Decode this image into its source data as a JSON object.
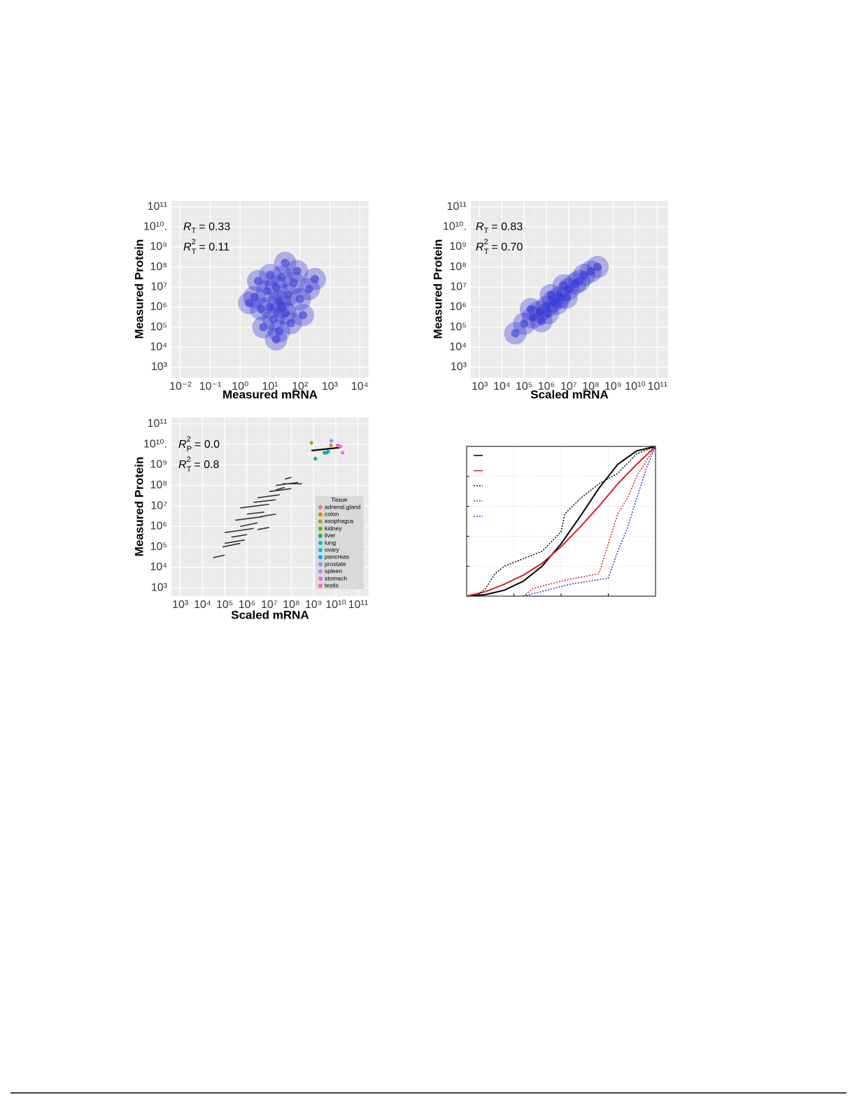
{
  "chart_data": [
    {
      "type": "scatter",
      "x_label": "Measured mRNA",
      "y_label": "Measured Protein",
      "xscale": "log",
      "yscale": "log",
      "xlim": [
        0.005,
        20000
      ],
      "ylim": [
        300,
        200000000000
      ],
      "xticks": [
        {
          "value": 0.01,
          "label": "10⁻²"
        },
        {
          "value": 0.1,
          "label": "10⁻¹"
        },
        {
          "value": 1,
          "label": "10⁰"
        },
        {
          "value": 10,
          "label": "10¹"
        },
        {
          "value": 100,
          "label": "10²"
        },
        {
          "value": 1000,
          "label": "10³"
        },
        {
          "value": 10000,
          "label": "10⁴"
        }
      ],
      "yticks": [
        {
          "value": 1000,
          "label": "10³"
        },
        {
          "value": 10000,
          "label": "10⁴"
        },
        {
          "value": 100000,
          "label": "10⁵"
        },
        {
          "value": 1000000,
          "label": "10⁶"
        },
        {
          "value": 10000000,
          "label": "10⁷"
        },
        {
          "value": 100000000,
          "label": "10⁸"
        },
        {
          "value": 1000000000,
          "label": "10⁹"
        },
        {
          "value": 10000000000,
          "label": "10¹⁰."
        },
        {
          "value": 100000000000,
          "label": "10¹¹"
        }
      ],
      "annotations": [
        {
          "symbol": "R",
          "sub": "T",
          "text": "= 0.33"
        },
        {
          "symbol": "R",
          "sub": "T",
          "sup": "2",
          "text": "= 0.11"
        }
      ],
      "color": "#3a3ad6",
      "x": [
        20,
        10,
        40,
        16,
        32,
        8,
        63,
        13,
        25,
        5,
        100,
        50,
        20,
        3,
        80,
        10,
        200,
        6,
        32,
        2,
        316,
        16,
        126,
        4,
        25
      ],
      "y": [
        2000000,
        1000000,
        4000000,
        10000000,
        500000,
        6300000,
        16000000,
        250000,
        32000000,
        800000,
        2500000,
        160000,
        63000,
        3200000,
        63000000,
        40000000,
        8000000,
        100000,
        160000000,
        1600000,
        25000000,
        25000,
        400000,
        20000000,
        1000000
      ]
    },
    {
      "type": "scatter",
      "x_label": "Scaled mRNA",
      "y_label": "Measured Protein",
      "xscale": "log",
      "yscale": "log",
      "xlim": [
        400,
        300000000000
      ],
      "ylim": [
        300,
        200000000000
      ],
      "xticks": [
        {
          "value": 1000,
          "label": "10³"
        },
        {
          "value": 10000,
          "label": "10⁴"
        },
        {
          "value": 100000,
          "label": "10⁵"
        },
        {
          "value": 1000000,
          "label": "10⁶"
        },
        {
          "value": 10000000,
          "label": "10⁷"
        },
        {
          "value": 100000000,
          "label": "10⁸"
        },
        {
          "value": 1000000000,
          "label": "10⁹"
        },
        {
          "value": 10000000000,
          "label": "10¹⁰"
        },
        {
          "value": 100000000000,
          "label": "10¹¹"
        }
      ],
      "yticks": [
        {
          "value": 1000,
          "label": "10³"
        },
        {
          "value": 10000,
          "label": "10⁴"
        },
        {
          "value": 100000,
          "label": "10⁵"
        },
        {
          "value": 1000000,
          "label": "10⁶"
        },
        {
          "value": 10000000,
          "label": "10⁷"
        },
        {
          "value": 100000000,
          "label": "10⁸"
        },
        {
          "value": 1000000000,
          "label": "10⁹"
        },
        {
          "value": 10000000000,
          "label": "10¹⁰."
        },
        {
          "value": 100000000000,
          "label": "10¹¹"
        }
      ],
      "annotations": [
        {
          "symbol": "R",
          "sub": "T",
          "text": "= 0.83"
        },
        {
          "symbol": "R",
          "sub": "T",
          "sup": "2",
          "text": "= 0.70"
        }
      ],
      "color": "#3a3ad6",
      "x": [
        2000000,
        1000000,
        4000000,
        10000000,
        500000,
        3000000,
        20000000,
        250000,
        50000000,
        100000,
        8000000,
        1600000,
        600000,
        30000000,
        100000000,
        40000,
        200000,
        6000000,
        200000000,
        1200000
      ],
      "y": [
        2000000,
        1000000,
        3000000,
        8000000,
        600000,
        1500000,
        15000000,
        300000,
        40000000,
        150000,
        3000000,
        4000000,
        200000,
        20000000,
        60000000,
        50000,
        800000,
        12000000,
        100000000,
        500000
      ]
    },
    {
      "type": "segment",
      "x_label": "Scaled mRNA",
      "y_label": "Measured Protein",
      "xscale": "log",
      "yscale": "log",
      "xlim": [
        400,
        300000000000
      ],
      "ylim": [
        400,
        200000000000
      ],
      "xticks": [
        {
          "value": 1000,
          "label": "10³"
        },
        {
          "value": 10000,
          "label": "10⁴"
        },
        {
          "value": 100000,
          "label": "10⁵"
        },
        {
          "value": 1000000,
          "label": "10⁶"
        },
        {
          "value": 10000000,
          "label": "10⁷"
        },
        {
          "value": 100000000,
          "label": "10⁸"
        },
        {
          "value": 1000000000,
          "label": "10⁹"
        },
        {
          "value": 10000000000,
          "label": "10¹⁰"
        },
        {
          "value": 100000000000,
          "label": "10¹¹"
        }
      ],
      "yticks": [
        {
          "value": 1000,
          "label": "10³"
        },
        {
          "value": 10000,
          "label": "10⁴"
        },
        {
          "value": 100000,
          "label": "10⁵"
        },
        {
          "value": 1000000,
          "label": "10⁶"
        },
        {
          "value": 10000000,
          "label": "10⁷"
        },
        {
          "value": 100000000,
          "label": "10⁸"
        },
        {
          "value": 1000000000,
          "label": "10⁹"
        },
        {
          "value": 10000000000,
          "label": "10¹⁰."
        },
        {
          "value": 100000000000,
          "label": "10¹¹"
        }
      ],
      "annotations": [
        {
          "symbol": "R",
          "sub": "P",
          "sup": "2",
          "text": "= 0.0"
        },
        {
          "symbol": "R",
          "sub": "T",
          "sup": "2",
          "text": "= 0.8"
        }
      ],
      "color": "#333333",
      "segments": [
        {
          "x": [
            30000,
            100000
          ],
          "y": [
            30000,
            40000
          ]
        },
        {
          "x": [
            80000,
            500000
          ],
          "y": [
            100000,
            150000
          ]
        },
        {
          "x": [
            200000,
            1000000
          ],
          "y": [
            300000,
            400000
          ]
        },
        {
          "x": [
            100000,
            2000000
          ],
          "y": [
            500000,
            800000
          ]
        },
        {
          "x": [
            500000,
            3000000
          ],
          "y": [
            1000000,
            1500000
          ]
        },
        {
          "x": [
            300000,
            5000000
          ],
          "y": [
            2000000,
            3000000
          ]
        },
        {
          "x": [
            1000000,
            6000000
          ],
          "y": [
            4000000,
            5000000
          ]
        },
        {
          "x": [
            500000,
            10000000
          ],
          "y": [
            8000000,
            12000000
          ]
        },
        {
          "x": [
            2000000,
            20000000
          ],
          "y": [
            15000000,
            20000000
          ]
        },
        {
          "x": [
            3000000,
            30000000
          ],
          "y": [
            25000000,
            35000000
          ]
        },
        {
          "x": [
            10000000,
            100000000
          ],
          "y": [
            50000000,
            70000000
          ]
        },
        {
          "x": [
            20000000,
            200000000
          ],
          "y": [
            100000000,
            140000000
          ]
        },
        {
          "x": [
            50000000,
            100000000
          ],
          "y": [
            200000000,
            250000000
          ]
        },
        {
          "x": [
            4000000,
            20000000
          ],
          "y": [
            3000000,
            4000000
          ]
        },
        {
          "x": [
            3000000,
            10000000
          ],
          "y": [
            700000,
            900000
          ]
        },
        {
          "x": [
            100000,
            800000
          ],
          "y": [
            150000,
            220000
          ]
        },
        {
          "x": [
            40000000,
            300000000
          ],
          "y": [
            120000000,
            120000000
          ]
        },
        {
          "x": [
            20000000,
            50000000
          ],
          "y": [
            60000000,
            80000000
          ]
        }
      ],
      "fit": {
        "x": [
          800000000,
          15000000000
        ],
        "y": [
          5000000000,
          7000000000
        ]
      },
      "legend_title": "Tissue",
      "series": [
        {
          "name": "adrenal.gland",
          "color": "#f8766d",
          "x": [
            12000000000
          ],
          "y": [
            9000000000
          ]
        },
        {
          "name": "colon",
          "color": "#db8e00",
          "x": [
            6000000000
          ],
          "y": [
            9000000000
          ]
        },
        {
          "name": "esophagus",
          "color": "#aea200",
          "x": [
            800000000
          ],
          "y": [
            12000000000
          ]
        },
        {
          "name": "kidney",
          "color": "#64b200",
          "x": [
            3000000000
          ],
          "y": [
            4000000000
          ]
        },
        {
          "name": "liver",
          "color": "#00bd5c",
          "x": [
            1200000000
          ],
          "y": [
            2000000000
          ]
        },
        {
          "name": "lung",
          "color": "#00c1a7",
          "x": [
            4500000000
          ],
          "y": [
            4500000000
          ]
        },
        {
          "name": "ovary",
          "color": "#00bade",
          "x": [
            3500000000
          ],
          "y": [
            3800000000
          ]
        },
        {
          "name": "pancreas",
          "color": "#00a6ff",
          "x": [
            3800000000
          ],
          "y": [
            4000000000
          ]
        },
        {
          "name": "prostate",
          "color": "#7f96ff",
          "x": [
            6300000000
          ],
          "y": [
            15000000000
          ]
        },
        {
          "name": "spleen",
          "color": "#c77cff",
          "x": [
            13000000000
          ],
          "y": [
            8500000000
          ]
        },
        {
          "name": "stomach",
          "color": "#ef67eb",
          "x": [
            20000000000
          ],
          "y": [
            3900000000
          ]
        },
        {
          "name": "testis",
          "color": "#ff63b6",
          "x": [
            16000000000
          ],
          "y": [
            8000000000
          ]
        }
      ]
    },
    {
      "type": "line",
      "xlim": [
        0,
        1
      ],
      "ylim": [
        0,
        1
      ],
      "xticks": [
        0.25,
        0.5,
        0.75
      ],
      "yticks": [
        0.2,
        0.4,
        0.6,
        0.8
      ],
      "grid": true,
      "tick_labels": false,
      "series": [
        {
          "color": "#000000",
          "style": "solid",
          "x": [
            0,
            0.1,
            0.2,
            0.3,
            0.4,
            0.5,
            0.6,
            0.7,
            0.8,
            0.9,
            1
          ],
          "y": [
            0,
            0.01,
            0.04,
            0.1,
            0.2,
            0.35,
            0.53,
            0.72,
            0.88,
            0.97,
            1
          ]
        },
        {
          "color": "#d42020",
          "style": "solid",
          "x": [
            0,
            0.1,
            0.2,
            0.3,
            0.4,
            0.5,
            0.6,
            0.7,
            0.8,
            0.9,
            1
          ],
          "y": [
            0,
            0.03,
            0.08,
            0.14,
            0.22,
            0.33,
            0.46,
            0.6,
            0.75,
            0.88,
            1
          ]
        },
        {
          "color": "#000000",
          "style": "dotted",
          "x": [
            0.05,
            0.1,
            0.15,
            0.2,
            0.3,
            0.4,
            0.5,
            0.52,
            0.6,
            0.7,
            0.8,
            0.9,
            1
          ],
          "y": [
            0,
            0.05,
            0.15,
            0.2,
            0.25,
            0.3,
            0.43,
            0.55,
            0.65,
            0.75,
            0.82,
            0.95,
            1
          ]
        },
        {
          "color": "#d42020",
          "style": "dotted",
          "x": [
            0.3,
            0.35,
            0.5,
            0.7,
            0.75,
            0.8,
            0.85,
            0.9,
            0.95,
            1
          ],
          "y": [
            0,
            0.05,
            0.1,
            0.15,
            0.35,
            0.55,
            0.65,
            0.8,
            0.9,
            1
          ]
        },
        {
          "color": "#2a3ad0",
          "style": "dotted",
          "x": [
            0.3,
            0.55,
            0.75,
            0.8,
            0.85,
            0.9,
            0.95,
            1
          ],
          "y": [
            0,
            0.08,
            0.12,
            0.3,
            0.45,
            0.65,
            0.85,
            1
          ]
        }
      ]
    }
  ]
}
